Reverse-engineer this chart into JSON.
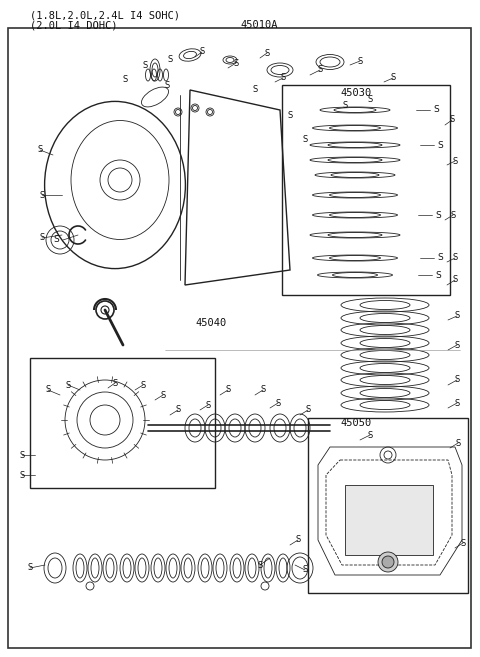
{
  "title_line1": "(1.8L,2.0L,2.4L I4 SOHC)",
  "title_line2": "(2.0L I4 DOHC)",
  "label_45010A": "45010A",
  "label_45030": "45030",
  "label_45040": "45040",
  "label_45050": "45050",
  "bg_color": "#ffffff",
  "line_color": "#222222",
  "border_color": "#333333",
  "label_color": "#111111",
  "fig_bg": "#f5f5f5"
}
